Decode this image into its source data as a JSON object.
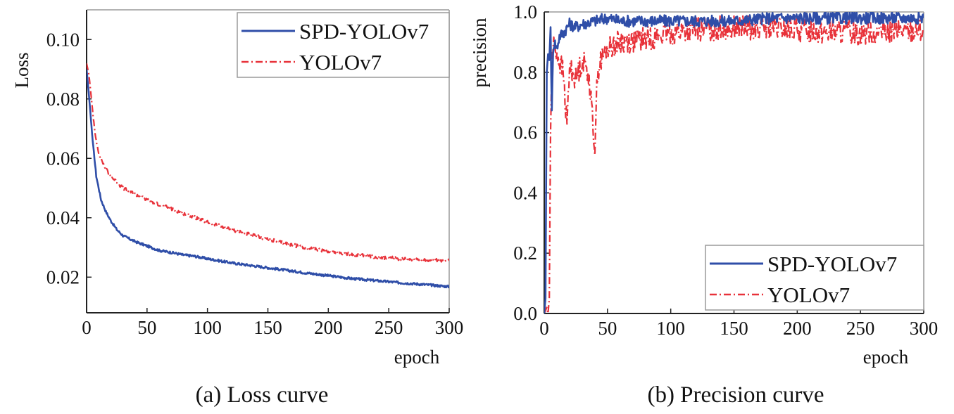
{
  "colors": {
    "series1": "#2f4ea8",
    "series2": "#e8323a",
    "axis": "#222222",
    "frame": "#9a9a9a"
  },
  "chart_data": [
    {
      "type": "line",
      "caption": "(a) Loss curve",
      "xlabel": "epoch",
      "ylabel": "Loss",
      "xlim": [
        0,
        300
      ],
      "ylim": [
        0.008,
        0.11
      ],
      "xticks": [
        "0",
        "50",
        "100",
        "150",
        "200",
        "250",
        "300"
      ],
      "xtick_values": [
        0,
        50,
        100,
        150,
        200,
        250,
        300
      ],
      "yticks": [
        "0.02",
        "0.04",
        "0.06",
        "0.08",
        "0.10"
      ],
      "ytick_values": [
        0.02,
        0.04,
        0.06,
        0.08,
        0.1
      ],
      "legend": "top-right",
      "series": [
        {
          "name": "SPD-YOLOv7",
          "style": "solid",
          "x": [
            0,
            2,
            5,
            8,
            12,
            16,
            20,
            25,
            30,
            35,
            40,
            50,
            60,
            70,
            80,
            90,
            100,
            120,
            140,
            160,
            180,
            200,
            220,
            240,
            260,
            280,
            300
          ],
          "y": [
            0.09,
            0.081,
            0.066,
            0.054,
            0.046,
            0.042,
            0.039,
            0.036,
            0.034,
            0.033,
            0.032,
            0.0305,
            0.029,
            0.0283,
            0.0275,
            0.027,
            0.0262,
            0.0248,
            0.0237,
            0.0226,
            0.0215,
            0.0205,
            0.0195,
            0.0188,
            0.0181,
            0.0175,
            0.0168
          ],
          "noise": 0.0004
        },
        {
          "name": "YOLOv7",
          "style": "dashdot",
          "x": [
            0,
            2,
            4,
            7,
            10,
            15,
            20,
            25,
            30,
            40,
            50,
            60,
            70,
            80,
            90,
            100,
            120,
            140,
            160,
            180,
            200,
            220,
            240,
            260,
            280,
            300
          ],
          "y": [
            0.092,
            0.088,
            0.08,
            0.068,
            0.062,
            0.057,
            0.054,
            0.052,
            0.05,
            0.048,
            0.046,
            0.0445,
            0.043,
            0.0415,
            0.04,
            0.0385,
            0.036,
            0.0338,
            0.0318,
            0.03,
            0.0287,
            0.0276,
            0.0268,
            0.0262,
            0.0258,
            0.0255
          ],
          "noise": 0.0006
        }
      ]
    },
    {
      "type": "line",
      "caption": "(b) Precision curve",
      "xlabel": "epoch",
      "ylabel": "precision",
      "xlim": [
        0,
        300
      ],
      "ylim": [
        0.0,
        1.0
      ],
      "xticks": [
        "0",
        "50",
        "100",
        "150",
        "200",
        "250",
        "300"
      ],
      "xtick_values": [
        0,
        50,
        100,
        150,
        200,
        250,
        300
      ],
      "yticks": [
        "0.0",
        "0.2",
        "0.4",
        "0.6",
        "0.8",
        "1.0"
      ],
      "ytick_values": [
        0.0,
        0.2,
        0.4,
        0.6,
        0.8,
        1.0
      ],
      "legend": "bottom-right",
      "series": [
        {
          "name": "SPD-YOLOv7",
          "style": "solid",
          "x": [
            0,
            1,
            2,
            3,
            4,
            5,
            6,
            7,
            8,
            10,
            12,
            15,
            20,
            25,
            30,
            40,
            50,
            60,
            80,
            100,
            120,
            150,
            180,
            200,
            250,
            300
          ],
          "y": [
            0.0,
            0.05,
            0.8,
            0.86,
            0.84,
            0.95,
            0.66,
            0.88,
            0.9,
            0.88,
            0.92,
            0.93,
            0.96,
            0.95,
            0.96,
            0.97,
            0.98,
            0.97,
            0.97,
            0.97,
            0.97,
            0.97,
            0.98,
            0.98,
            0.98,
            0.98
          ],
          "noise": 0.02
        },
        {
          "name": "YOLOv7",
          "style": "dashdot",
          "x": [
            0,
            2,
            3,
            4,
            5,
            6,
            8,
            10,
            15,
            18,
            20,
            25,
            30,
            35,
            40,
            42,
            45,
            50,
            60,
            80,
            100,
            120,
            150,
            200,
            250,
            300
          ],
          "y": [
            0.0,
            0.02,
            0.0,
            0.05,
            0.6,
            0.85,
            0.9,
            0.86,
            0.8,
            0.62,
            0.82,
            0.78,
            0.84,
            0.8,
            0.55,
            0.8,
            0.84,
            0.88,
            0.9,
            0.91,
            0.93,
            0.94,
            0.95,
            0.94,
            0.93,
            0.94
          ],
          "noise": 0.04
        }
      ]
    }
  ]
}
